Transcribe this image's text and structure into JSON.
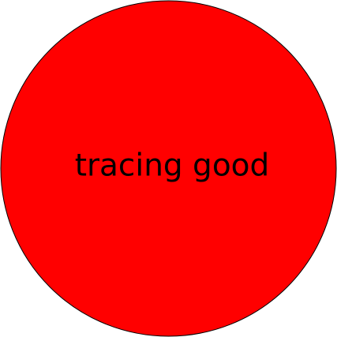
{
  "circle": {
    "label": "tracing good",
    "fill_color": "#ff0000",
    "stroke_color": "#000000"
  }
}
